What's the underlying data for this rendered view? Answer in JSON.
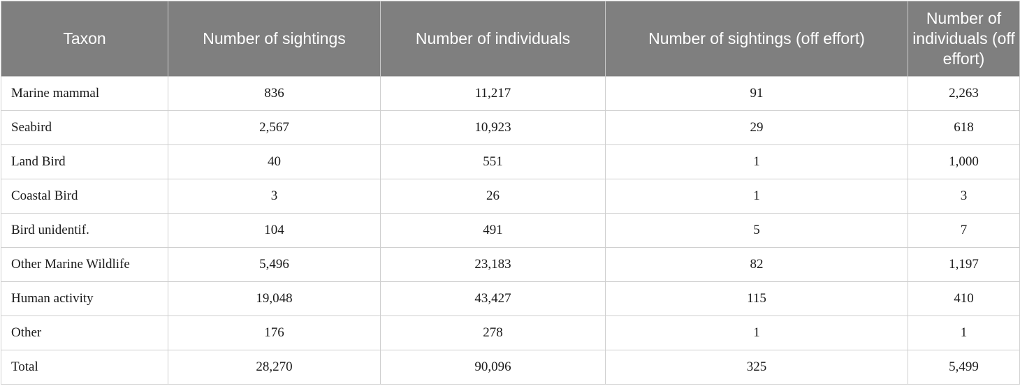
{
  "table": {
    "headers": [
      "Taxon",
      "Number of sightings",
      "Number of individuals",
      "Number of sightings (off effort)",
      "Number of individuals (off effort)"
    ],
    "rows": [
      [
        "Marine mammal",
        "836",
        "11,217",
        "91",
        "2,263"
      ],
      [
        "Seabird",
        "2,567",
        "10,923",
        "29",
        "618"
      ],
      [
        "Land Bird",
        "40",
        "551",
        "1",
        "1,000"
      ],
      [
        "Coastal Bird",
        "3",
        "26",
        "1",
        "3"
      ],
      [
        "Bird unidentif.",
        "104",
        "491",
        "5",
        "7"
      ],
      [
        "Other Marine Wildlife",
        "5,496",
        "23,183",
        "82",
        "1,197"
      ],
      [
        "Human activity",
        "19,048",
        "43,427",
        "115",
        "410"
      ],
      [
        "Other",
        "176",
        "278",
        "1",
        "1"
      ],
      [
        "Total",
        "28,270",
        "90,096",
        "325",
        "5,499"
      ]
    ]
  },
  "colors": {
    "header_bg": "#7f7f7f",
    "header_text": "#ffffff",
    "border": "#cfcfcf"
  }
}
